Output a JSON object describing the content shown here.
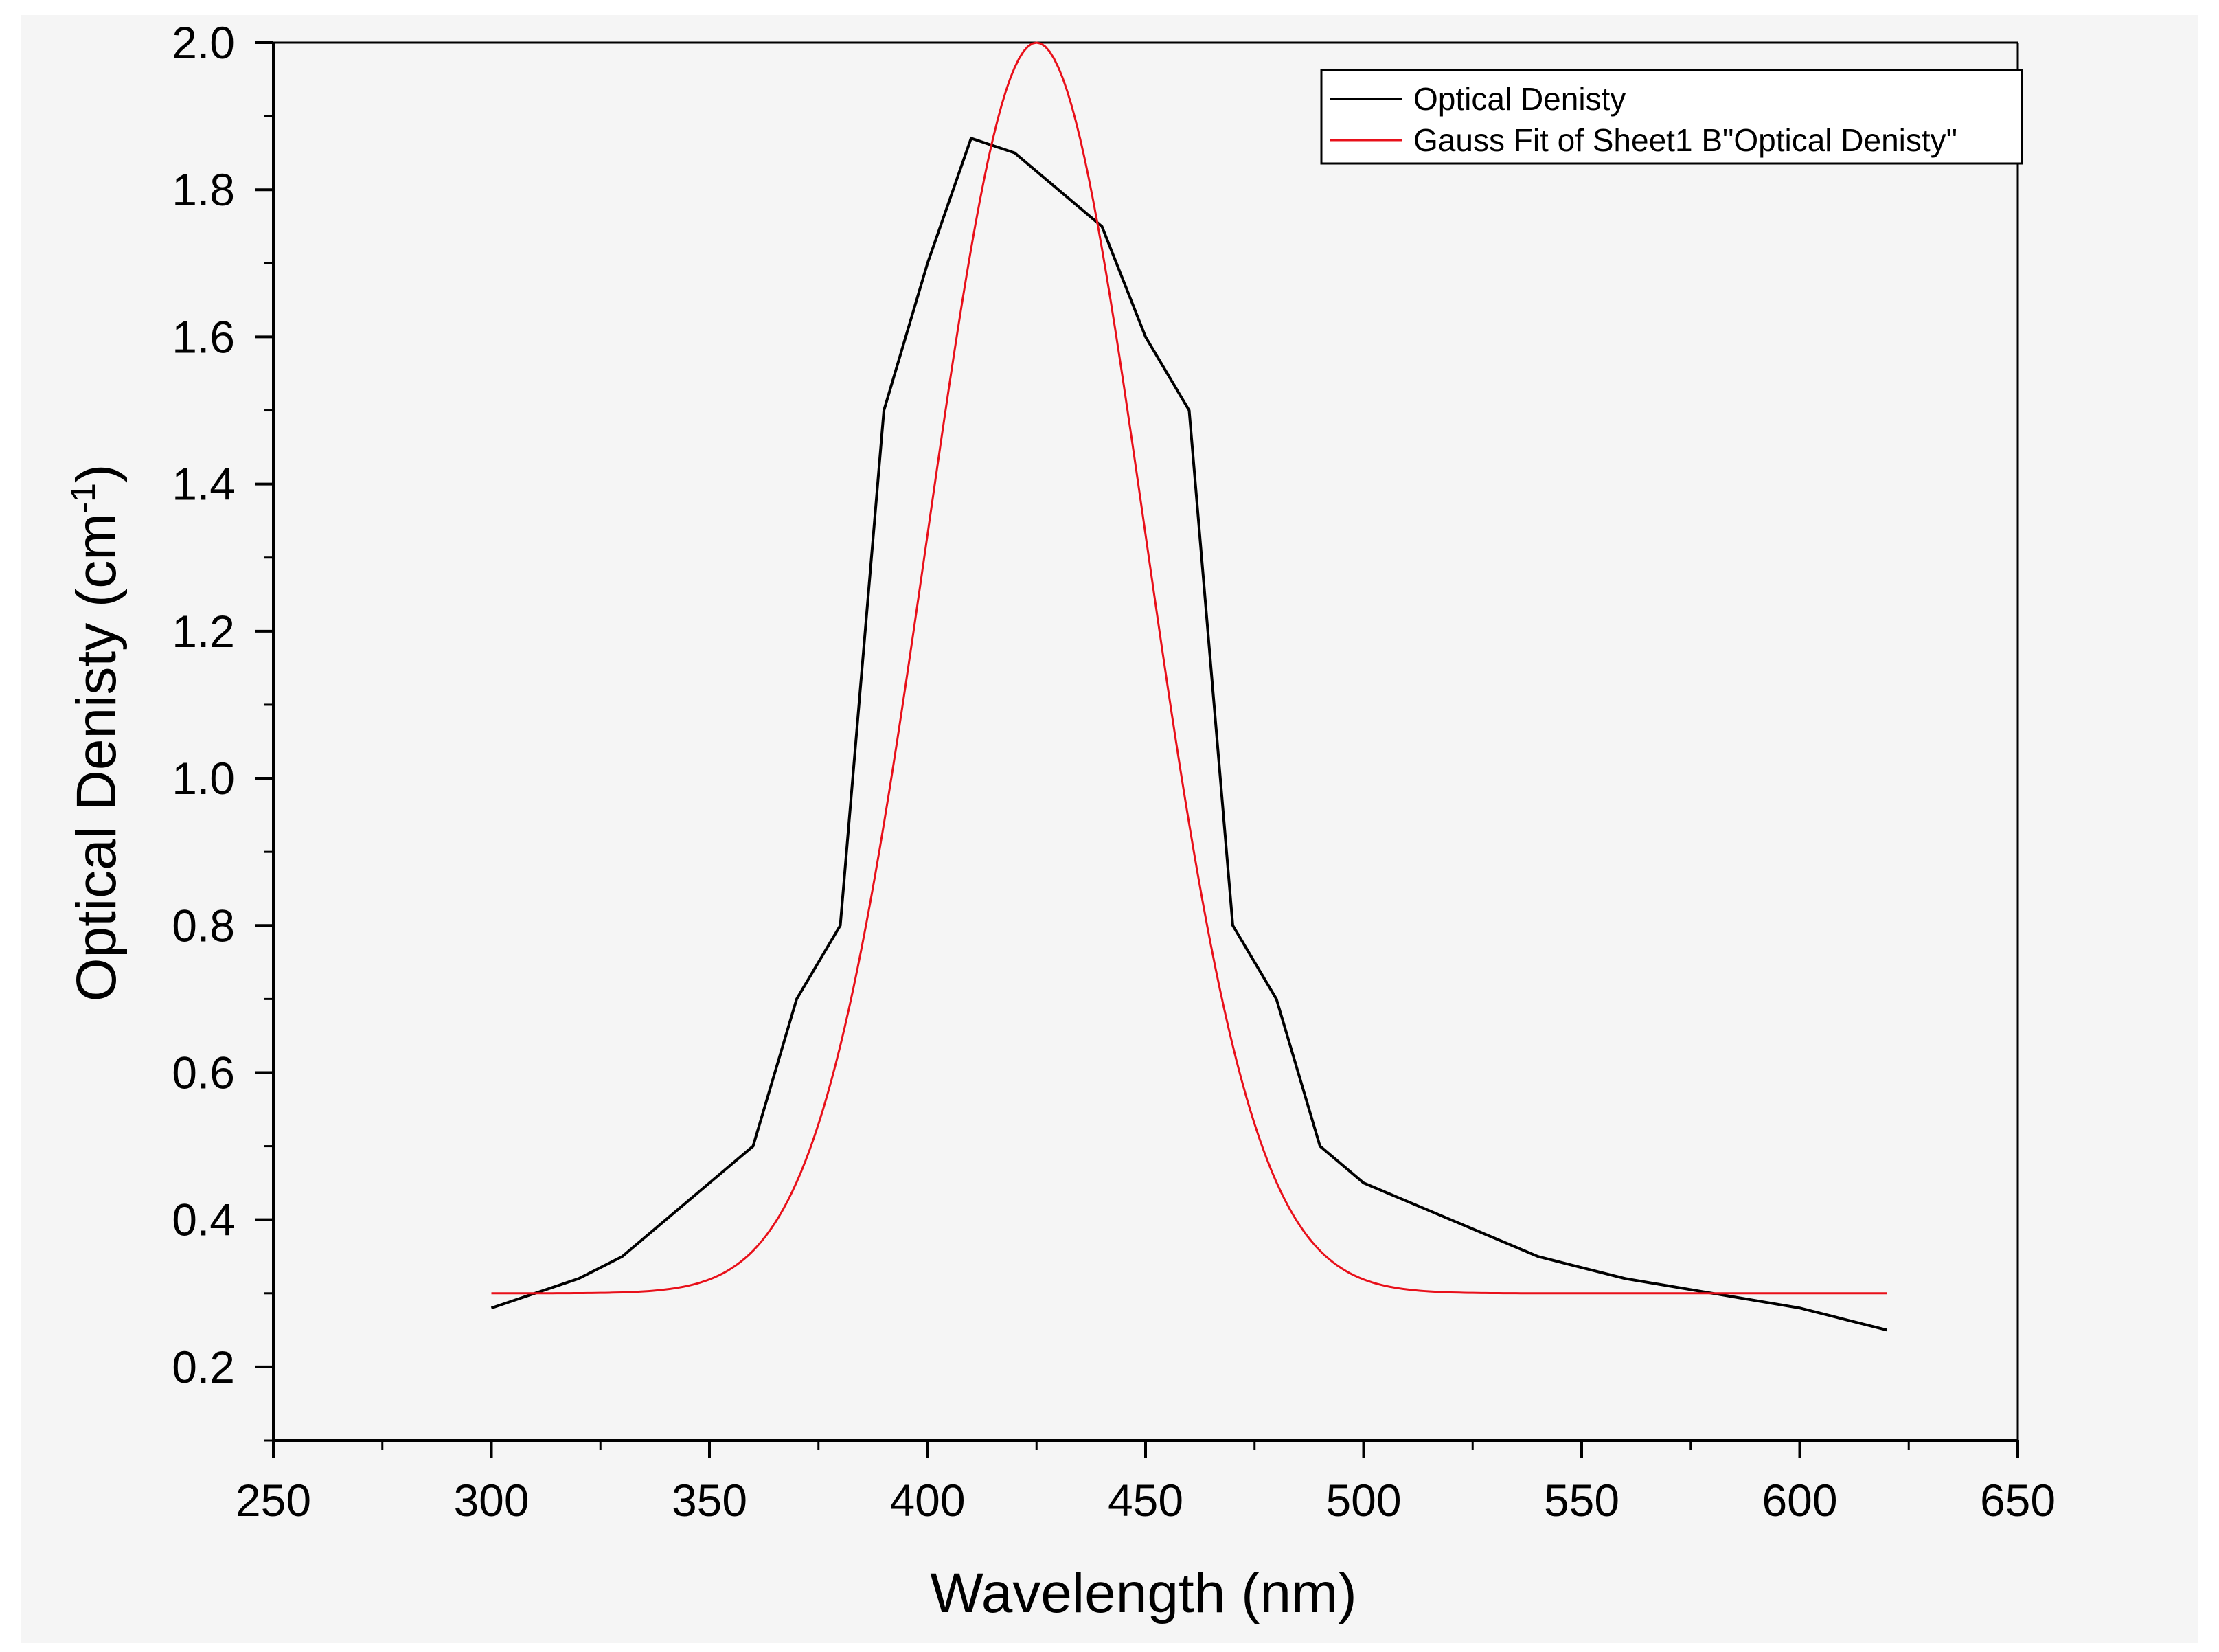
{
  "chart_data": {
    "type": "line",
    "title": "",
    "xlabel": "Wavelength (nm)",
    "ylabel": "Optical Denisty (cm",
    "ylabel_sup": "-1",
    "ylabel_close": ")",
    "xlim": [
      250,
      650
    ],
    "ylim": [
      0.1,
      2.0
    ],
    "xticks": [
      250,
      300,
      350,
      400,
      450,
      500,
      550,
      600,
      650
    ],
    "xtick_labels": [
      "250",
      "300",
      "350",
      "400",
      "450",
      "500",
      "550",
      "600",
      "650"
    ],
    "yticks": [
      0.2,
      0.4,
      0.6,
      0.8,
      1.0,
      1.2,
      1.4,
      1.6,
      1.8,
      2.0
    ],
    "ytick_labels": [
      "0.2",
      "0.4",
      "0.6",
      "0.8",
      "1.0",
      "1.2",
      "1.4",
      "1.6",
      "1.8",
      "2.0"
    ],
    "legend_position": "top-right",
    "series": [
      {
        "name": "Optical Denisty",
        "color": "#000000",
        "x": [
          300,
          320,
          330,
          340,
          350,
          360,
          370,
          380,
          390,
          400,
          410,
          420,
          430,
          440,
          450,
          460,
          470,
          480,
          490,
          500,
          520,
          540,
          560,
          580,
          600,
          610,
          620
        ],
        "y": [
          0.28,
          0.32,
          0.35,
          0.4,
          0.45,
          0.5,
          0.7,
          0.8,
          1.5,
          1.7,
          1.87,
          1.85,
          1.8,
          1.75,
          1.6,
          1.5,
          0.8,
          0.7,
          0.5,
          0.45,
          0.4,
          0.35,
          0.32,
          0.3,
          0.28,
          0.265,
          0.25
        ]
      },
      {
        "name": "Gauss Fit of Sheet1 B\"Optical Denisty\"",
        "color": "#e8101a",
        "fit": {
          "model": "gauss",
          "y0": 0.3,
          "A": 1.7,
          "xc": 425,
          "sigma": 25,
          "x_start": 300,
          "x_end": 620
        }
      }
    ]
  }
}
